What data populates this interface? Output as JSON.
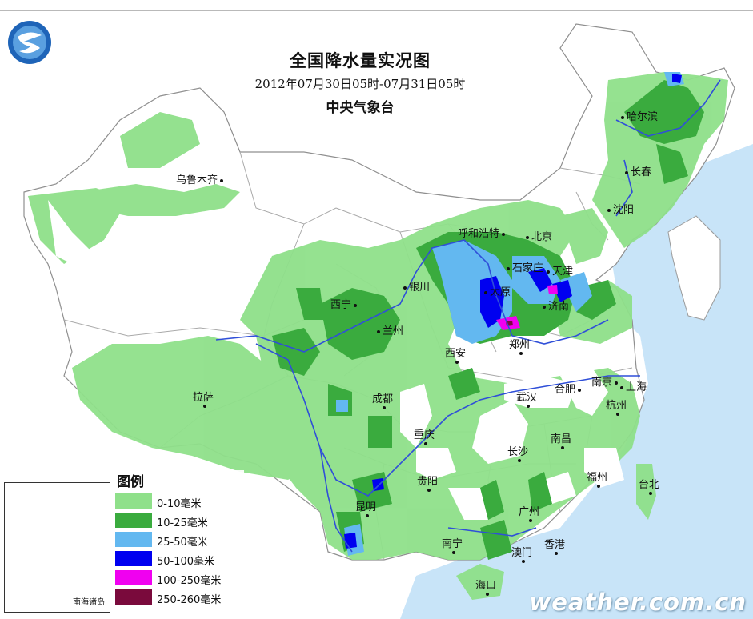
{
  "map": {
    "title": "全国降水量实况图",
    "date_range": "2012年07月30日05时-07月31日05时",
    "organization": "中央气象台",
    "watermark": "weather.com.cn",
    "inset_label": "南海诸岛"
  },
  "legend": {
    "title": "图例",
    "items": [
      {
        "label": "0-10毫米",
        "color": "#8fe08a"
      },
      {
        "label": "10-25毫米",
        "color": "#3aab3e"
      },
      {
        "label": "25-50毫米",
        "color": "#63b8f0"
      },
      {
        "label": "50-100毫米",
        "color": "#0000f0"
      },
      {
        "label": "100-250毫米",
        "color": "#f000f0"
      },
      {
        "label": "250-260毫米",
        "color": "#7a0a3c"
      }
    ]
  },
  "cities": {
    "urumqi": "乌鲁木齐",
    "harbin": "哈尔滨",
    "changchun": "长春",
    "shenyang": "沈阳",
    "hohhot": "呼和浩特",
    "beijing": "北京",
    "shijiazhuang": "石家庄",
    "tianjin": "天津",
    "yinchuan": "银川",
    "taiyuan": "太原",
    "jinan": "济南",
    "xining": "西宁",
    "lanzhou": "兰州",
    "zhengzhou": "郑州",
    "xian": "西安",
    "lhasa": "拉萨",
    "chengdu": "成都",
    "hefei": "合肥",
    "nanjing": "南京",
    "shanghai": "上海",
    "wuhan": "武汉",
    "hangzhou": "杭州",
    "chongqing": "重庆",
    "nanchang": "南昌",
    "changsha": "长沙",
    "fuzhou": "福州",
    "taipei": "台北",
    "guiyang": "贵阳",
    "kunming": "昆明",
    "guangzhou": "广州",
    "nanning": "南宁",
    "macau": "澳门",
    "hongkong": "香港",
    "haikou": "海口"
  },
  "colors": {
    "sea": "#c8e4f8",
    "land": "#ffffff",
    "border": "#a9a9a9",
    "river": "#2f4fd8"
  }
}
